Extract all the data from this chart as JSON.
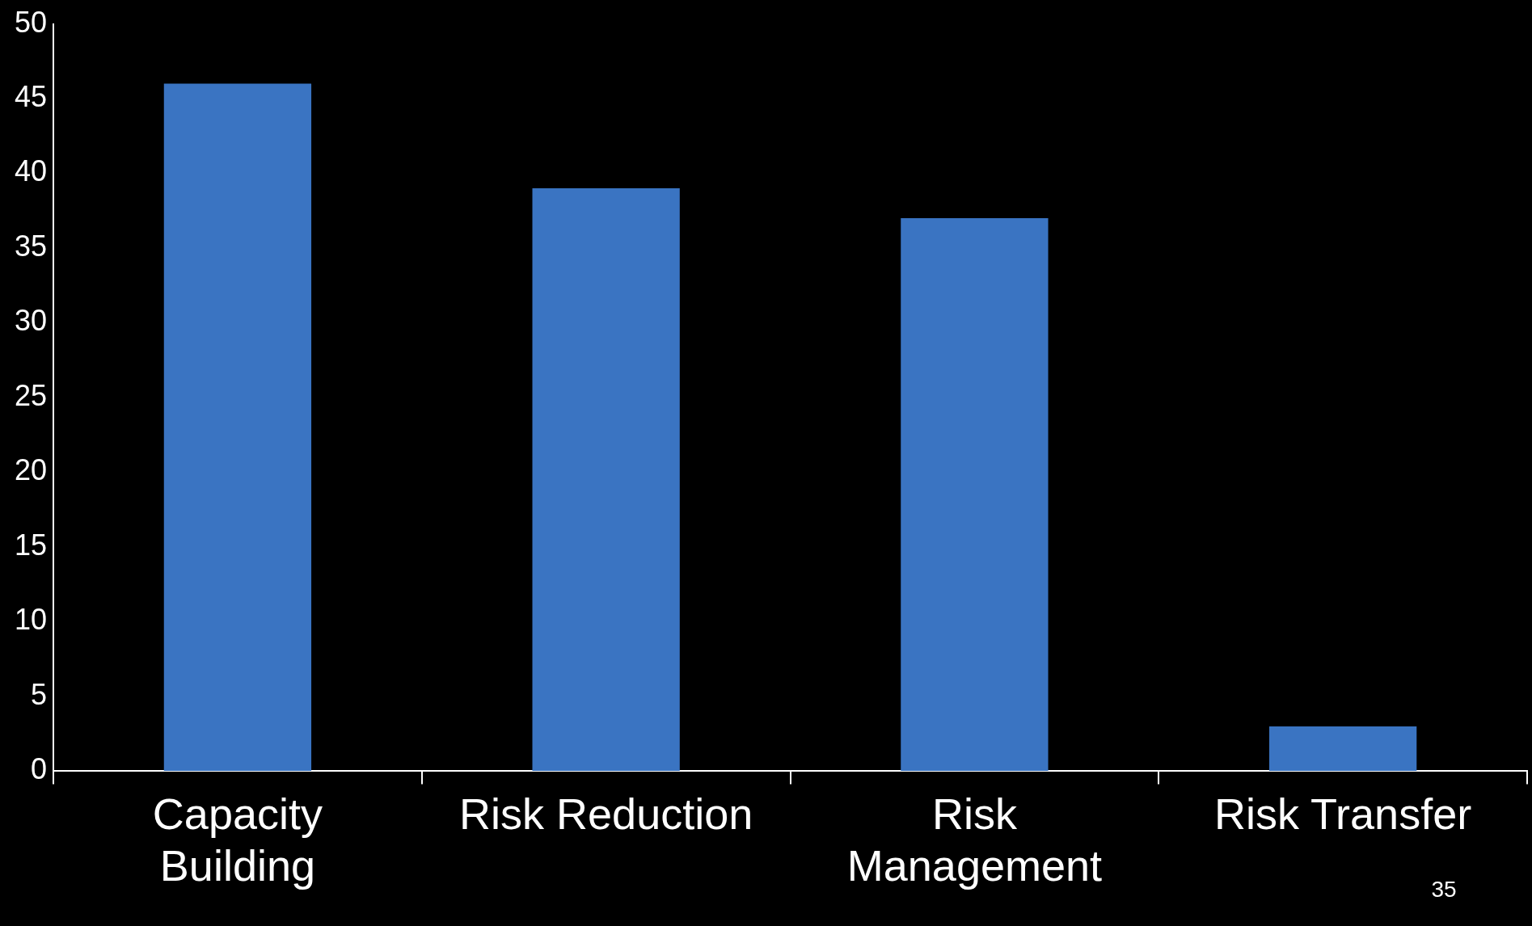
{
  "chart_data": {
    "type": "bar",
    "categories": [
      "Capacity Building",
      "Risk Reduction",
      "Risk Management",
      "Risk Transfer"
    ],
    "values": [
      46,
      39,
      37,
      3
    ],
    "color": "#3a74c2",
    "ylim": [
      0,
      50
    ],
    "yticks": [
      0,
      5,
      10,
      15,
      20,
      25,
      30,
      35,
      40,
      45,
      50
    ],
    "grid": false,
    "annotations": [
      "35"
    ]
  }
}
